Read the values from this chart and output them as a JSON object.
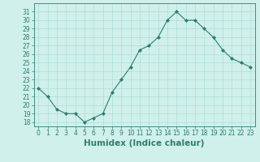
{
  "hours": [
    0,
    1,
    2,
    3,
    4,
    5,
    6,
    7,
    8,
    9,
    10,
    11,
    12,
    13,
    14,
    15,
    16,
    17,
    18,
    19,
    20,
    21,
    22,
    23
  ],
  "values": [
    22.0,
    21.0,
    19.5,
    19.0,
    19.0,
    18.0,
    18.5,
    19.0,
    21.5,
    23.0,
    24.5,
    26.5,
    27.0,
    28.0,
    30.0,
    31.0,
    30.0,
    30.0,
    29.0,
    28.0,
    26.5,
    25.5,
    25.0,
    24.5
  ],
  "line_color": "#2e7d6e",
  "marker": "D",
  "marker_size": 2,
  "bg_color": "#cff0eb",
  "grid_color": "#b0ddd8",
  "xlabel": "Humidex (Indice chaleur)",
  "ylabel": "",
  "title": "",
  "ylim": [
    17.5,
    32
  ],
  "xlim": [
    -0.5,
    23.5
  ],
  "yticks": [
    18,
    19,
    20,
    21,
    22,
    23,
    24,
    25,
    26,
    27,
    28,
    29,
    30,
    31
  ],
  "xticks": [
    0,
    1,
    2,
    3,
    4,
    5,
    6,
    7,
    8,
    9,
    10,
    11,
    12,
    13,
    14,
    15,
    16,
    17,
    18,
    19,
    20,
    21,
    22,
    23
  ],
  "tick_label_size": 5.5,
  "xlabel_size": 7.5
}
